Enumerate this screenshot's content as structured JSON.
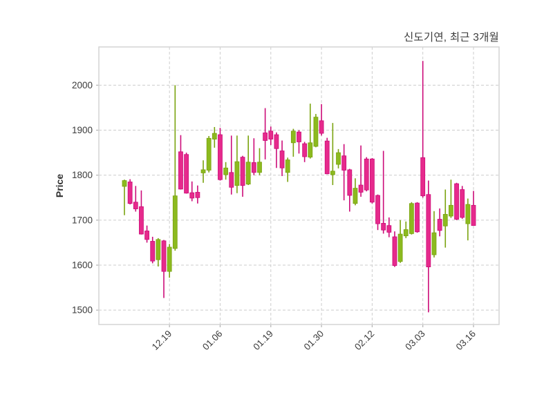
{
  "title": "신도기연, 최근 3개월",
  "ylabel": "Price",
  "chart_data": {
    "type": "candlestick",
    "title": "신도기연, 최근 3개월",
    "ylabel": "Price",
    "xlabel": "",
    "grid": true,
    "ylim": [
      1468,
      2085
    ],
    "yticks": [
      1500,
      1600,
      1700,
      1800,
      1900,
      2000
    ],
    "xticks": [
      {
        "index": 8,
        "label": "12.19"
      },
      {
        "index": 17,
        "label": "01.06"
      },
      {
        "index": 26,
        "label": "01.19"
      },
      {
        "index": 35,
        "label": "01.30"
      },
      {
        "index": 44,
        "label": "02.12"
      },
      {
        "index": 53,
        "label": "03.03"
      },
      {
        "index": 62,
        "label": "03.16"
      }
    ],
    "colors": {
      "up": "#8cba1f",
      "up_edge": "#7aa30f",
      "down": "#e62a8c",
      "down_edge": "#cc0b78",
      "grid": "#cccccc",
      "frame": "#d4d4d4",
      "tick": "#b0b0b0",
      "text": "#3a3a3a"
    },
    "candles_format": [
      "open",
      "high",
      "low",
      "close"
    ],
    "candles": [
      [
        1775,
        1790,
        1711,
        1788
      ],
      [
        1785,
        1791,
        1735,
        1737
      ],
      [
        1740,
        1776,
        1719,
        1725
      ],
      [
        1730,
        1766,
        1668,
        1669
      ],
      [
        1676,
        1688,
        1650,
        1657
      ],
      [
        1653,
        1663,
        1604,
        1609
      ],
      [
        1612,
        1660,
        1597,
        1657
      ],
      [
        1654,
        1656,
        1527,
        1586
      ],
      [
        1586,
        1647,
        1572,
        1640
      ],
      [
        1637,
        2000,
        1632,
        1754
      ],
      [
        1852,
        1889,
        1768,
        1769
      ],
      [
        1846,
        1850,
        1759,
        1760
      ],
      [
        1761,
        1786,
        1742,
        1749
      ],
      [
        1762,
        1777,
        1737,
        1750
      ],
      [
        1805,
        1833,
        1783,
        1812
      ],
      [
        1811,
        1887,
        1806,
        1882
      ],
      [
        1880,
        1907,
        1861,
        1893
      ],
      [
        1890,
        1905,
        1788,
        1790
      ],
      [
        1801,
        1829,
        1790,
        1816
      ],
      [
        1806,
        1888,
        1757,
        1773
      ],
      [
        1777,
        1888,
        1760,
        1830
      ],
      [
        1840,
        1843,
        1752,
        1777
      ],
      [
        1780,
        1888,
        1778,
        1829
      ],
      [
        1828,
        1882,
        1800,
        1806
      ],
      [
        1806,
        1860,
        1800,
        1829
      ],
      [
        1894,
        1949,
        1835,
        1877
      ],
      [
        1898,
        1908,
        1867,
        1880
      ],
      [
        1890,
        1895,
        1816,
        1859
      ],
      [
        1854,
        1877,
        1798,
        1816
      ],
      [
        1806,
        1839,
        1785,
        1834
      ],
      [
        1872,
        1903,
        1841,
        1898
      ],
      [
        1896,
        1900,
        1848,
        1874
      ],
      [
        1870,
        1874,
        1829,
        1841
      ],
      [
        1840,
        1959,
        1837,
        1872
      ],
      [
        1864,
        1936,
        1862,
        1929
      ],
      [
        1921,
        1958,
        1888,
        1893
      ],
      [
        1876,
        1883,
        1802,
        1803
      ],
      [
        1801,
        1916,
        1778,
        1809
      ],
      [
        1824,
        1858,
        1815,
        1850
      ],
      [
        1843,
        1869,
        1744,
        1811
      ],
      [
        1812,
        1814,
        1719,
        1755
      ],
      [
        1737,
        1793,
        1733,
        1771
      ],
      [
        1778,
        1866,
        1752,
        1762
      ],
      [
        1836,
        1840,
        1764,
        1767
      ],
      [
        1836,
        1838,
        1737,
        1740
      ],
      [
        1755,
        1757,
        1678,
        1692
      ],
      [
        1693,
        1854,
        1670,
        1678
      ],
      [
        1688,
        1706,
        1662,
        1673
      ],
      [
        1663,
        1675,
        1596,
        1599
      ],
      [
        1608,
        1700,
        1605,
        1669
      ],
      [
        1665,
        1697,
        1660,
        1679
      ],
      [
        1670,
        1740,
        1668,
        1737
      ],
      [
        1738,
        1740,
        1672,
        1674
      ],
      [
        1839,
        2054,
        1750,
        1754
      ],
      [
        1757,
        1788,
        1495,
        1596
      ],
      [
        1623,
        1720,
        1617,
        1672
      ],
      [
        1702,
        1726,
        1664,
        1677
      ],
      [
        1687,
        1768,
        1639,
        1713
      ],
      [
        1709,
        1790,
        1705,
        1733
      ],
      [
        1781,
        1783,
        1700,
        1702
      ],
      [
        1768,
        1776,
        1703,
        1706
      ],
      [
        1692,
        1748,
        1655,
        1735
      ],
      [
        1733,
        1765,
        1688,
        1688
      ]
    ]
  }
}
